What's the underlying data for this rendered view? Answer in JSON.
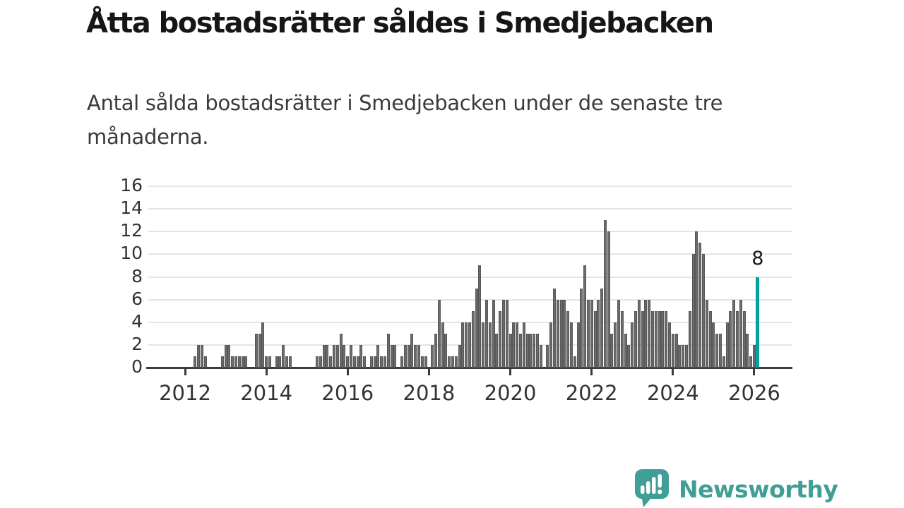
{
  "header": {
    "title": "Åtta bostadsrätter såldes i Smedjebacken",
    "subtitle": "Antal sålda bostadsrätter i Smedjebacken under de senaste tre månaderna."
  },
  "chart_data": {
    "type": "bar",
    "title": "Åtta bostadsrätter såldes i Smedjebacken",
    "subtitle": "Antal sålda bostadsrätter i Smedjebacken under de senaste tre månaderna.",
    "xlabel": "",
    "ylabel": "",
    "grid": true,
    "y_axis": {
      "ticks": [
        0,
        2,
        4,
        6,
        8,
        10,
        12,
        14,
        16
      ],
      "max": 16
    },
    "x_axis": {
      "tick_labels": [
        "2012",
        "2014",
        "2016",
        "2018",
        "2020",
        "2022",
        "2024",
        "2026"
      ],
      "start_year": 2011,
      "interval": "monthly"
    },
    "bar_color": "#6b6b6b",
    "highlight_color": "#00a3a4",
    "monthly_values": {
      "2011": [
        0,
        0,
        0,
        0,
        0,
        0,
        0,
        0,
        0,
        0,
        0,
        0
      ],
      "2012": [
        0,
        0,
        0,
        1,
        2,
        2,
        1,
        0,
        0,
        0,
        0,
        1
      ],
      "2013": [
        2,
        2,
        1,
        1,
        1,
        1,
        1,
        0,
        0,
        3,
        3,
        4
      ],
      "2014": [
        1,
        1,
        0,
        1,
        1,
        2,
        1,
        1,
        0,
        0,
        0,
        0
      ],
      "2015": [
        0,
        0,
        0,
        1,
        1,
        2,
        2,
        1,
        2,
        2,
        3,
        2
      ],
      "2016": [
        1,
        2,
        1,
        1,
        2,
        1,
        0,
        1,
        1,
        2,
        1,
        1
      ],
      "2017": [
        3,
        2,
        2,
        0,
        1,
        2,
        2,
        3,
        2,
        2,
        1,
        1
      ],
      "2018": [
        0,
        2,
        3,
        6,
        4,
        3,
        1,
        1,
        1,
        2,
        4,
        4
      ],
      "2019": [
        4,
        5,
        7,
        9,
        4,
        6,
        4,
        6,
        3,
        5,
        6,
        6
      ],
      "2020": [
        3,
        4,
        4,
        3,
        4,
        3,
        3,
        3,
        3,
        2,
        0,
        2
      ],
      "2021": [
        4,
        7,
        6,
        6,
        6,
        5,
        4,
        1,
        4,
        7,
        9,
        6
      ],
      "2022": [
        6,
        5,
        6,
        7,
        13,
        12,
        3,
        4,
        6,
        5,
        3,
        2
      ],
      "2023": [
        4,
        5,
        6,
        5,
        6,
        6,
        5,
        5,
        5,
        5,
        5,
        4
      ],
      "2024": [
        3,
        3,
        2,
        2,
        2,
        5,
        10,
        12,
        11,
        10,
        6,
        5
      ],
      "2025": [
        4,
        3,
        3,
        1,
        4,
        5,
        6,
        5,
        6,
        5,
        3,
        1
      ],
      "2026": [
        2,
        8
      ]
    },
    "highlight": {
      "position": "last",
      "value": 8,
      "label": "8"
    }
  },
  "logo": {
    "text": "Newsworthy",
    "icon": "newsworthy-bubble-chart-icon",
    "color": "#3f9e95"
  }
}
